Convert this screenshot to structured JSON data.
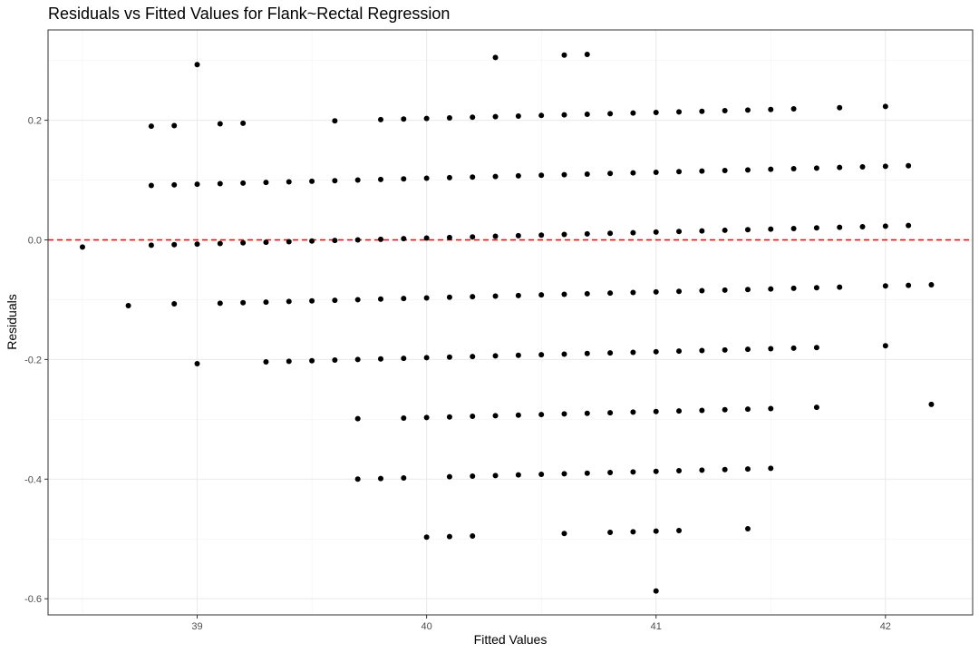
{
  "chart_data": {
    "type": "scatter",
    "title": "Residuals vs Fitted Values for Flank~Rectal Regression",
    "xlabel": "Fitted Values",
    "ylabel": "Residuals",
    "xlim": [
      38.35,
      42.38
    ],
    "ylim": [
      -0.627,
      0.351
    ],
    "x_ticks": [
      39,
      40,
      41,
      42
    ],
    "x_tick_labels": [
      "39",
      "40",
      "41",
      "42"
    ],
    "y_ticks": [
      -0.6,
      -0.4,
      -0.2,
      0.0,
      0.2
    ],
    "y_tick_labels": [
      "-0.6",
      "-0.4",
      "-0.2",
      "0.0",
      "0.2"
    ],
    "grid": true,
    "reference_line": {
      "y": 0,
      "color": "#ff0000",
      "style": "dashed"
    },
    "point_color": "#000000",
    "x": [
      38.5,
      38.7,
      38.8,
      38.8,
      38.8,
      38.9,
      38.9,
      38.9,
      38.9,
      39.0,
      39.0,
      39.0,
      39.0,
      39.1,
      39.1,
      39.1,
      39.1,
      39.2,
      39.2,
      39.2,
      39.2,
      39.3,
      39.3,
      39.3,
      39.3,
      39.4,
      39.4,
      39.4,
      39.4,
      39.5,
      39.5,
      39.5,
      39.5,
      39.6,
      39.6,
      39.6,
      39.6,
      39.6,
      39.7,
      39.7,
      39.7,
      39.7,
      39.7,
      39.7,
      39.8,
      39.8,
      39.8,
      39.8,
      39.8,
      39.8,
      39.9,
      39.9,
      39.9,
      39.9,
      39.9,
      39.9,
      39.9,
      40.0,
      40.0,
      40.0,
      40.0,
      40.0,
      40.0,
      40.0,
      40.1,
      40.1,
      40.1,
      40.1,
      40.1,
      40.1,
      40.1,
      40.1,
      40.2,
      40.2,
      40.2,
      40.2,
      40.2,
      40.2,
      40.2,
      40.2,
      40.3,
      40.3,
      40.3,
      40.3,
      40.3,
      40.3,
      40.3,
      40.3,
      40.4,
      40.4,
      40.4,
      40.4,
      40.4,
      40.4,
      40.4,
      40.5,
      40.5,
      40.5,
      40.5,
      40.5,
      40.5,
      40.5,
      40.6,
      40.6,
      40.6,
      40.6,
      40.6,
      40.6,
      40.6,
      40.6,
      40.6,
      40.7,
      40.7,
      40.7,
      40.7,
      40.7,
      40.7,
      40.7,
      40.7,
      40.8,
      40.8,
      40.8,
      40.8,
      40.8,
      40.8,
      40.8,
      40.8,
      40.9,
      40.9,
      40.9,
      40.9,
      40.9,
      40.9,
      40.9,
      40.9,
      41.0,
      41.0,
      41.0,
      41.0,
      41.0,
      41.0,
      41.0,
      41.0,
      41.0,
      41.1,
      41.1,
      41.1,
      41.1,
      41.1,
      41.1,
      41.1,
      41.1,
      41.2,
      41.2,
      41.2,
      41.2,
      41.2,
      41.2,
      41.2,
      41.3,
      41.3,
      41.3,
      41.3,
      41.3,
      41.3,
      41.3,
      41.4,
      41.4,
      41.4,
      41.4,
      41.4,
      41.4,
      41.4,
      41.4,
      41.5,
      41.5,
      41.5,
      41.5,
      41.5,
      41.5,
      41.5,
      41.6,
      41.6,
      41.6,
      41.6,
      41.6,
      41.7,
      41.7,
      41.7,
      41.7,
      41.7,
      41.8,
      41.8,
      41.8,
      41.8,
      41.9,
      41.9,
      42.0,
      42.0,
      42.0,
      42.0,
      42.0,
      42.1,
      42.1,
      42.1,
      42.2,
      42.2
    ],
    "y": [
      -0.012,
      -0.11,
      0.19,
      0.091,
      -0.009,
      0.191,
      0.092,
      -0.008,
      -0.107,
      0.293,
      0.093,
      -0.007,
      -0.207,
      0.194,
      0.094,
      -0.006,
      -0.106,
      0.195,
      0.095,
      -0.005,
      -0.105,
      0.096,
      -0.004,
      -0.104,
      -0.204,
      0.097,
      -0.003,
      -0.103,
      -0.203,
      0.098,
      -0.002,
      -0.102,
      -0.202,
      0.199,
      0.099,
      -0.001,
      -0.101,
      -0.201,
      0.1,
      0.0,
      -0.1,
      -0.2,
      -0.299,
      -0.4,
      0.201,
      0.101,
      0.001,
      -0.099,
      -0.199,
      -0.399,
      0.202,
      0.102,
      0.002,
      -0.098,
      -0.198,
      -0.298,
      -0.398,
      0.203,
      0.103,
      0.003,
      -0.097,
      -0.197,
      -0.297,
      -0.497,
      0.204,
      0.104,
      0.004,
      -0.096,
      -0.196,
      -0.296,
      -0.396,
      -0.496,
      0.205,
      0.105,
      0.005,
      -0.095,
      -0.195,
      -0.295,
      -0.395,
      -0.495,
      0.305,
      0.206,
      0.106,
      0.006,
      -0.094,
      -0.194,
      -0.294,
      -0.394,
      0.207,
      0.107,
      0.007,
      -0.093,
      -0.193,
      -0.293,
      -0.393,
      0.208,
      0.108,
      0.008,
      -0.092,
      -0.192,
      -0.292,
      -0.392,
      0.309,
      0.209,
      0.109,
      0.009,
      -0.091,
      -0.191,
      -0.291,
      -0.391,
      -0.491,
      0.31,
      0.21,
      0.11,
      0.01,
      -0.09,
      -0.19,
      -0.29,
      -0.39,
      0.211,
      0.111,
      0.011,
      -0.089,
      -0.189,
      -0.289,
      -0.389,
      -0.489,
      0.212,
      0.112,
      0.012,
      -0.088,
      -0.188,
      -0.288,
      -0.388,
      -0.488,
      0.213,
      0.113,
      0.013,
      -0.087,
      -0.187,
      -0.287,
      -0.387,
      -0.487,
      -0.587,
      0.214,
      0.114,
      0.014,
      -0.086,
      -0.186,
      -0.286,
      -0.386,
      -0.486,
      0.215,
      0.115,
      0.015,
      -0.085,
      -0.185,
      -0.285,
      -0.385,
      0.216,
      0.116,
      0.016,
      -0.084,
      -0.184,
      -0.284,
      -0.384,
      0.217,
      0.117,
      0.017,
      -0.083,
      -0.183,
      -0.283,
      -0.383,
      -0.483,
      0.218,
      0.118,
      0.018,
      -0.082,
      -0.182,
      -0.282,
      -0.382,
      0.219,
      0.119,
      0.019,
      -0.081,
      -0.181,
      0.12,
      0.02,
      -0.08,
      -0.18,
      -0.28,
      0.221,
      0.121,
      0.021,
      -0.079,
      0.122,
      0.022,
      0.223,
      0.123,
      0.023,
      -0.077,
      -0.177,
      0.124,
      0.024,
      -0.076,
      -0.075,
      -0.275
    ]
  }
}
